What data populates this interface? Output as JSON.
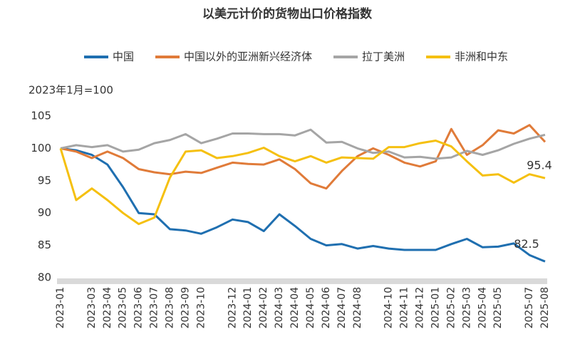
{
  "chart_data": {
    "type": "line",
    "title": "以美元计价的货物出口价格指数",
    "ylabel": "2023年1月=100",
    "categories": [
      "2023-01",
      null,
      "2023-03",
      "2023-04",
      "2023-05",
      "2023-06",
      "2023-07",
      "2023-08",
      "2023-09",
      "2023-10",
      null,
      "2023-12",
      "2024-01",
      "2024-02",
      "2024-03",
      "2024-04",
      "2024-05",
      "2024-06",
      "2024-07",
      "2024-08",
      null,
      "2024-10",
      "2024-11",
      "2024-12",
      "2025-01",
      "2025-02",
      "2025-03",
      "2025-04",
      "2025-05",
      null,
      "2025-07",
      "2025-08"
    ],
    "series": [
      {
        "name": "中国",
        "color": "#1f6fb0",
        "values": [
          100,
          99.7,
          99,
          97.5,
          94,
          90,
          89.8,
          87.5,
          87.3,
          86.8,
          87.8,
          89,
          88.6,
          87.2,
          89.8,
          88,
          86,
          85,
          85.2,
          84.5,
          84.9,
          84.5,
          84.3,
          84.3,
          84.3,
          85.2,
          86,
          84.7,
          84.8,
          85.3,
          83.5,
          82.5
        ]
      },
      {
        "name": "中国以外的亚洲新兴经济体",
        "color": "#e07b39",
        "values": [
          100,
          99.5,
          98.5,
          99.5,
          98.5,
          96.8,
          96.3,
          96,
          96.4,
          96.2,
          97,
          97.8,
          97.6,
          97.5,
          98.3,
          96.8,
          94.6,
          93.8,
          96.5,
          98.8,
          100,
          99,
          97.8,
          97.2,
          98,
          103,
          99,
          100.5,
          102.8,
          102.3,
          103.6,
          101
        ]
      },
      {
        "name": "拉丁美洲",
        "color": "#a5a5a5",
        "values": [
          100,
          100.5,
          100.2,
          100.5,
          99.5,
          99.8,
          100.8,
          101.3,
          102.2,
          100.8,
          101.5,
          102.3,
          102.3,
          102.2,
          102.2,
          102,
          102.9,
          100.9,
          101,
          100,
          99.3,
          99.5,
          98.6,
          98.7,
          98.4,
          98.6,
          99.6,
          99,
          99.7,
          100.7,
          101.5,
          102.1
        ]
      },
      {
        "name": "非洲和中东",
        "color": "#f5c010",
        "values": [
          100,
          92,
          93.8,
          92,
          90,
          88.3,
          89.3,
          95.5,
          99.5,
          99.7,
          98.5,
          98.8,
          99.3,
          100.1,
          98.8,
          98,
          98.8,
          97.8,
          98.6,
          98.5,
          98.4,
          100.2,
          100.2,
          100.8,
          101.2,
          100.3,
          98,
          95.8,
          96,
          94.7,
          96,
          95.4
        ]
      }
    ],
    "ylim": [
      80,
      105
    ],
    "yticks": [
      80,
      85,
      90,
      95,
      100,
      105
    ],
    "grid": false
  }
}
